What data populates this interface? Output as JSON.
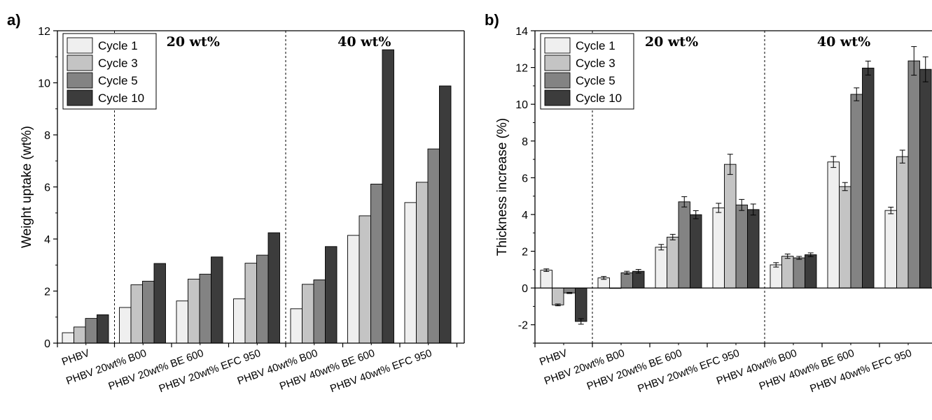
{
  "chart_data": [
    {
      "type": "bar",
      "panel_label": "a)",
      "ylabel": "Weight uptake (wt%)",
      "xlabel": "",
      "ylim": [
        0,
        12
      ],
      "yticks": [
        "0",
        "2",
        "4",
        "6",
        "8",
        "10",
        "12"
      ],
      "categories": [
        "PHBV",
        "PHBV 20wt% B00",
        "PHBV 20wt% BE 600",
        "PHBV 20wt% EFC 950",
        "PHBV 40wt% B00",
        "PHBV 40wt% BE 600",
        "PHBV 40wt% EFC 950"
      ],
      "series": [
        {
          "name": "Cycle 1",
          "color": "#efefef",
          "values": [
            0.4,
            1.37,
            1.62,
            1.7,
            1.32,
            4.14,
            5.4
          ]
        },
        {
          "name": "Cycle 3",
          "color": "#c4c4c4",
          "values": [
            0.62,
            2.24,
            2.46,
            3.07,
            2.26,
            4.89,
            6.18
          ]
        },
        {
          "name": "Cycle 5",
          "color": "#838383",
          "values": [
            0.95,
            2.38,
            2.65,
            3.38,
            2.43,
            6.11,
            7.46
          ]
        },
        {
          "name": "Cycle 10",
          "color": "#3c3c3c",
          "values": [
            1.09,
            3.06,
            3.31,
            4.24,
            3.71,
            11.27,
            9.88
          ]
        }
      ],
      "group_labels": [
        "20 wt%",
        "40 wt%"
      ],
      "legend_position": "top-left",
      "grid": false
    },
    {
      "type": "bar",
      "panel_label": "b)",
      "ylabel": "Thickness increase (%)",
      "xlabel": "",
      "ylim": [
        -3,
        14
      ],
      "yticks": [
        "-2",
        "0",
        "2",
        "4",
        "6",
        "8",
        "10",
        "12",
        "14"
      ],
      "categories": [
        "PHBV",
        "PHBV 20wt% B00",
        "PHBV 20wt% BE 600",
        "PHBV 20wt% EFC 950",
        "PHBV 40wt% B00",
        "PHBV 40wt% BE 600",
        "PHBV 40wt% EFC 950"
      ],
      "series": [
        {
          "name": "Cycle 1",
          "color": "#efefef",
          "values": [
            0.97,
            0.55,
            2.22,
            4.36,
            1.26,
            6.86,
            4.22
          ],
          "errors": [
            0.07,
            0.08,
            0.15,
            0.25,
            0.12,
            0.3,
            0.18
          ]
        },
        {
          "name": "Cycle 3",
          "color": "#c4c4c4",
          "values": [
            -0.92,
            0.0,
            2.77,
            6.73,
            1.73,
            5.52,
            7.15
          ],
          "errors": [
            0.05,
            0.0,
            0.15,
            0.55,
            0.12,
            0.22,
            0.35
          ]
        },
        {
          "name": "Cycle 5",
          "color": "#838383",
          "values": [
            -0.27,
            0.83,
            4.69,
            4.52,
            1.64,
            10.54,
            12.36
          ],
          "errors": [
            0.03,
            0.08,
            0.28,
            0.3,
            0.08,
            0.35,
            0.78
          ]
        },
        {
          "name": "Cycle 10",
          "color": "#3c3c3c",
          "values": [
            -1.82,
            0.91,
            3.99,
            4.27,
            1.81,
            11.97,
            11.9
          ],
          "errors": [
            0.15,
            0.1,
            0.22,
            0.3,
            0.1,
            0.38,
            0.68
          ]
        }
      ],
      "group_labels": [
        "20 wt%",
        "40 wt%"
      ],
      "legend_position": "top-left",
      "grid": false
    }
  ]
}
